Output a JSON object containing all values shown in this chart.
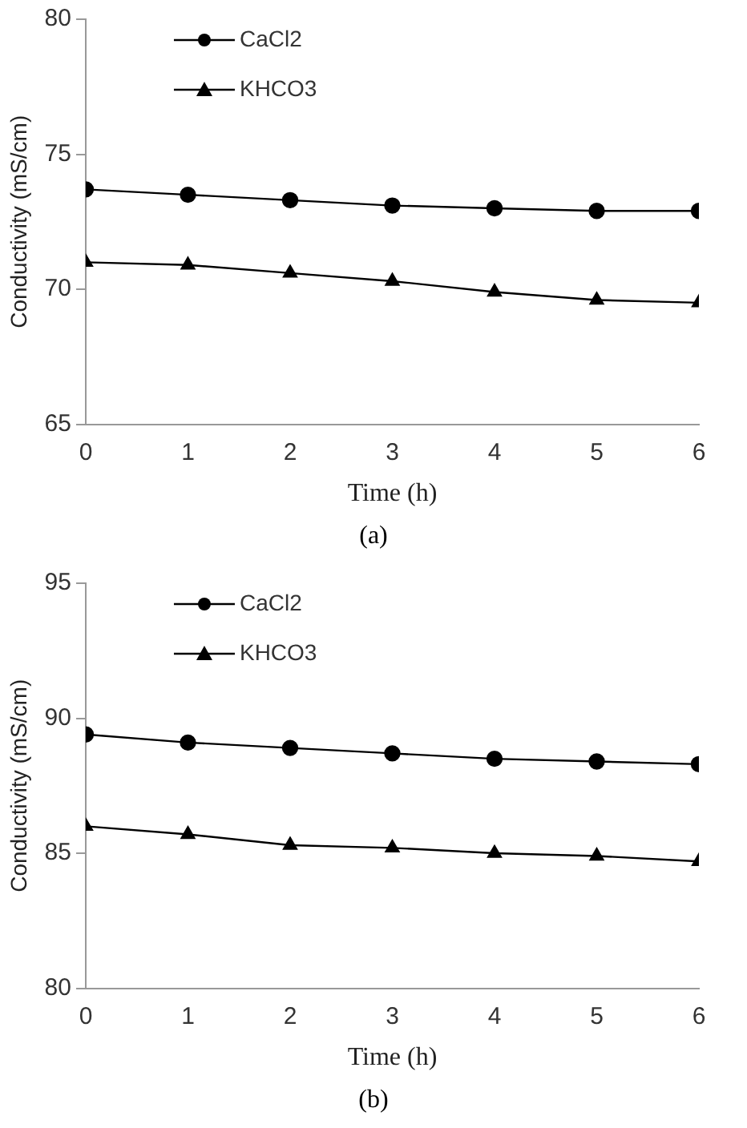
{
  "chart_data": [
    {
      "type": "line",
      "xlabel": "Time (h)",
      "ylabel": "Conductivity (mS/cm)",
      "x": [
        0,
        1,
        2,
        3,
        4,
        5,
        6
      ],
      "xlim": [
        0,
        6
      ],
      "xticks": [
        0,
        1,
        2,
        3,
        4,
        5,
        6
      ],
      "ylim": [
        65,
        80
      ],
      "yticks": [
        65,
        70,
        75,
        80
      ],
      "grid": false,
      "legend": "top left",
      "line_style": "solid",
      "annotations": [
        "(a)"
      ],
      "series": [
        {
          "name": "CaCl2",
          "color": "#000000",
          "marker": "circle",
          "values": [
            73.7,
            73.5,
            73.3,
            73.1,
            73.0,
            72.9,
            72.9
          ]
        },
        {
          "name": "KHCO3",
          "color": "#000000",
          "marker": "triangle",
          "values": [
            71.0,
            70.9,
            70.6,
            70.3,
            69.9,
            69.6,
            69.5
          ]
        }
      ]
    },
    {
      "type": "line",
      "xlabel": "Time (h)",
      "ylabel": "Conductivity (mS/cm)",
      "x": [
        0,
        1,
        2,
        3,
        4,
        5,
        6
      ],
      "xlim": [
        0,
        6
      ],
      "xticks": [
        0,
        1,
        2,
        3,
        4,
        5,
        6
      ],
      "ylim": [
        80,
        95
      ],
      "yticks": [
        80,
        85,
        90,
        95
      ],
      "grid": false,
      "legend": "top left",
      "line_style": "solid",
      "annotations": [
        "(b)"
      ],
      "series": [
        {
          "name": "CaCl2",
          "color": "#000000",
          "marker": "circle",
          "values": [
            89.4,
            89.1,
            88.9,
            88.7,
            88.5,
            88.4,
            88.3
          ]
        },
        {
          "name": "KHCO3",
          "color": "#000000",
          "marker": "triangle",
          "values": [
            86.0,
            85.7,
            85.3,
            85.2,
            85.0,
            84.9,
            84.7
          ]
        }
      ]
    }
  ]
}
